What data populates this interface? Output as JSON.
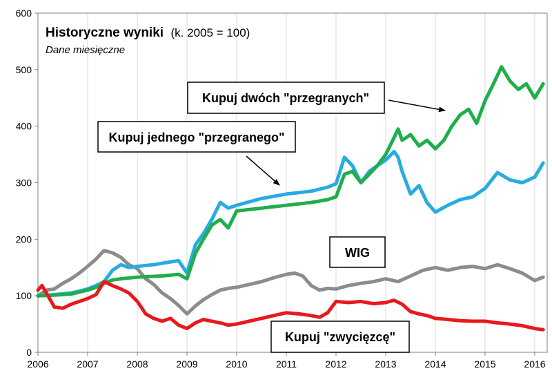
{
  "chart_data": {
    "type": "line",
    "title": "Historyczne wyniki",
    "title_note": "(k. 2005 = 100)",
    "subtitle": "Dane miesięczne",
    "xlim": [
      2006,
      2016.25
    ],
    "ylim": [
      0,
      600
    ],
    "x_ticks": [
      2006,
      2007,
      2008,
      2009,
      2010,
      2011,
      2012,
      2013,
      2014,
      2015,
      2016
    ],
    "x_tick_labels": [
      "2006",
      "2007",
      "2008",
      "2009",
      "2010",
      "2011",
      "2012",
      "2013",
      "2014",
      "2015",
      "2016"
    ],
    "y_ticks": [
      0,
      100,
      200,
      300,
      400,
      500,
      600
    ],
    "y_tick_labels": [
      "0",
      "100",
      "200",
      "300",
      "400",
      "500",
      "600"
    ],
    "grid": "vertical",
    "series": [
      {
        "key": "wig",
        "color": "#8c8c8c",
        "x": [
          2006.0,
          2006.17,
          2006.33,
          2006.5,
          2006.67,
          2006.83,
          2007.0,
          2007.17,
          2007.33,
          2007.5,
          2007.67,
          2007.83,
          2008.0,
          2008.17,
          2008.33,
          2008.5,
          2008.67,
          2008.83,
          2009.0,
          2009.17,
          2009.33,
          2009.5,
          2009.67,
          2009.83,
          2010.0,
          2010.25,
          2010.5,
          2010.75,
          2011.0,
          2011.17,
          2011.33,
          2011.5,
          2011.67,
          2011.83,
          2012.0,
          2012.25,
          2012.5,
          2012.75,
          2013.0,
          2013.25,
          2013.5,
          2013.75,
          2014.0,
          2014.25,
          2014.5,
          2014.75,
          2015.0,
          2015.25,
          2015.5,
          2015.75,
          2016.0,
          2016.17
        ],
        "values": [
          100,
          110,
          112,
          122,
          130,
          140,
          152,
          165,
          180,
          176,
          168,
          155,
          148,
          130,
          120,
          105,
          95,
          83,
          68,
          82,
          93,
          102,
          110,
          113,
          115,
          120,
          125,
          132,
          138,
          140,
          135,
          118,
          110,
          113,
          112,
          118,
          122,
          125,
          130,
          125,
          135,
          145,
          150,
          145,
          150,
          152,
          148,
          155,
          148,
          140,
          127,
          133
        ]
      },
      {
        "key": "jednego",
        "name": "Kupuj jednego \"przegranego\"",
        "color": "#29aae2",
        "x": [
          2006.0,
          2006.33,
          2006.67,
          2006.83,
          2007.0,
          2007.17,
          2007.33,
          2007.5,
          2007.67,
          2007.83,
          2008.0,
          2008.33,
          2008.67,
          2008.83,
          2009.0,
          2009.17,
          2009.33,
          2009.5,
          2009.67,
          2009.83,
          2010.0,
          2010.5,
          2011.0,
          2011.5,
          2011.83,
          2012.0,
          2012.17,
          2012.33,
          2012.5,
          2012.67,
          2012.83,
          2013.0,
          2013.17,
          2013.25,
          2013.33,
          2013.5,
          2013.67,
          2013.83,
          2014.0,
          2014.25,
          2014.5,
          2014.75,
          2015.0,
          2015.25,
          2015.5,
          2015.75,
          2016.0,
          2016.17
        ],
        "values": [
          100,
          102,
          105,
          108,
          112,
          118,
          125,
          145,
          155,
          150,
          152,
          155,
          160,
          162,
          140,
          190,
          210,
          235,
          265,
          255,
          260,
          272,
          280,
          285,
          292,
          298,
          345,
          330,
          300,
          320,
          330,
          340,
          355,
          345,
          320,
          280,
          295,
          265,
          248,
          260,
          270,
          275,
          290,
          318,
          305,
          300,
          310,
          335
        ]
      },
      {
        "key": "dwoch",
        "name": "Kupuj dwóch \"przegranych\"",
        "color": "#1fae4c",
        "x": [
          2006.0,
          2006.33,
          2006.67,
          2007.0,
          2007.17,
          2007.33,
          2007.5,
          2007.67,
          2008.0,
          2008.5,
          2008.83,
          2009.0,
          2009.17,
          2009.33,
          2009.5,
          2009.67,
          2009.83,
          2010.0,
          2010.5,
          2011.0,
          2011.5,
          2011.83,
          2012.0,
          2012.17,
          2012.33,
          2012.5,
          2012.67,
          2012.83,
          2013.0,
          2013.17,
          2013.25,
          2013.33,
          2013.5,
          2013.67,
          2013.83,
          2014.0,
          2014.17,
          2014.33,
          2014.5,
          2014.67,
          2014.83,
          2015.0,
          2015.17,
          2015.33,
          2015.5,
          2015.67,
          2015.83,
          2016.0,
          2016.17
        ],
        "values": [
          100,
          101,
          103,
          110,
          115,
          122,
          128,
          130,
          133,
          135,
          138,
          130,
          175,
          200,
          225,
          235,
          220,
          250,
          255,
          260,
          265,
          270,
          275,
          315,
          320,
          300,
          315,
          330,
          350,
          380,
          395,
          375,
          385,
          365,
          375,
          360,
          375,
          400,
          420,
          430,
          405,
          445,
          475,
          505,
          480,
          465,
          475,
          450,
          475
        ]
      },
      {
        "key": "zwyciezce",
        "name": "Kupuj \"zwycięzcę\"",
        "color": "#e8191d",
        "x": [
          2006.0,
          2006.08,
          2006.17,
          2006.33,
          2006.5,
          2006.67,
          2006.83,
          2007.0,
          2007.17,
          2007.33,
          2007.5,
          2007.67,
          2007.83,
          2008.0,
          2008.17,
          2008.33,
          2008.5,
          2008.67,
          2008.83,
          2009.0,
          2009.17,
          2009.33,
          2009.5,
          2009.67,
          2009.83,
          2010.0,
          2010.25,
          2010.5,
          2010.75,
          2011.0,
          2011.25,
          2011.5,
          2011.67,
          2011.83,
          2012.0,
          2012.25,
          2012.5,
          2012.75,
          2013.0,
          2013.17,
          2013.33,
          2013.5,
          2013.67,
          2013.83,
          2014.0,
          2014.25,
          2014.5,
          2014.75,
          2015.0,
          2015.25,
          2015.5,
          2015.75,
          2016.0,
          2016.17
        ],
        "values": [
          110,
          118,
          105,
          80,
          78,
          85,
          90,
          95,
          102,
          125,
          118,
          112,
          105,
          90,
          68,
          60,
          55,
          60,
          48,
          42,
          52,
          58,
          55,
          52,
          48,
          50,
          55,
          60,
          65,
          70,
          68,
          65,
          62,
          70,
          90,
          88,
          90,
          86,
          88,
          92,
          85,
          72,
          68,
          65,
          60,
          58,
          56,
          55,
          55,
          52,
          50,
          47,
          42,
          40
        ]
      }
    ],
    "annotations": [
      {
        "series": "dwoch",
        "text": "Kupuj dwóch \"przegranych\"",
        "arrow": true
      },
      {
        "series": "jednego",
        "text": "Kupuj jednego \"przegranego\"",
        "arrow": true
      },
      {
        "series": "wig",
        "text": "WIG",
        "arrow": false
      },
      {
        "series": "zwyciezce",
        "text": "Kupuj \"zwycięzcę\"",
        "arrow": false
      }
    ]
  }
}
